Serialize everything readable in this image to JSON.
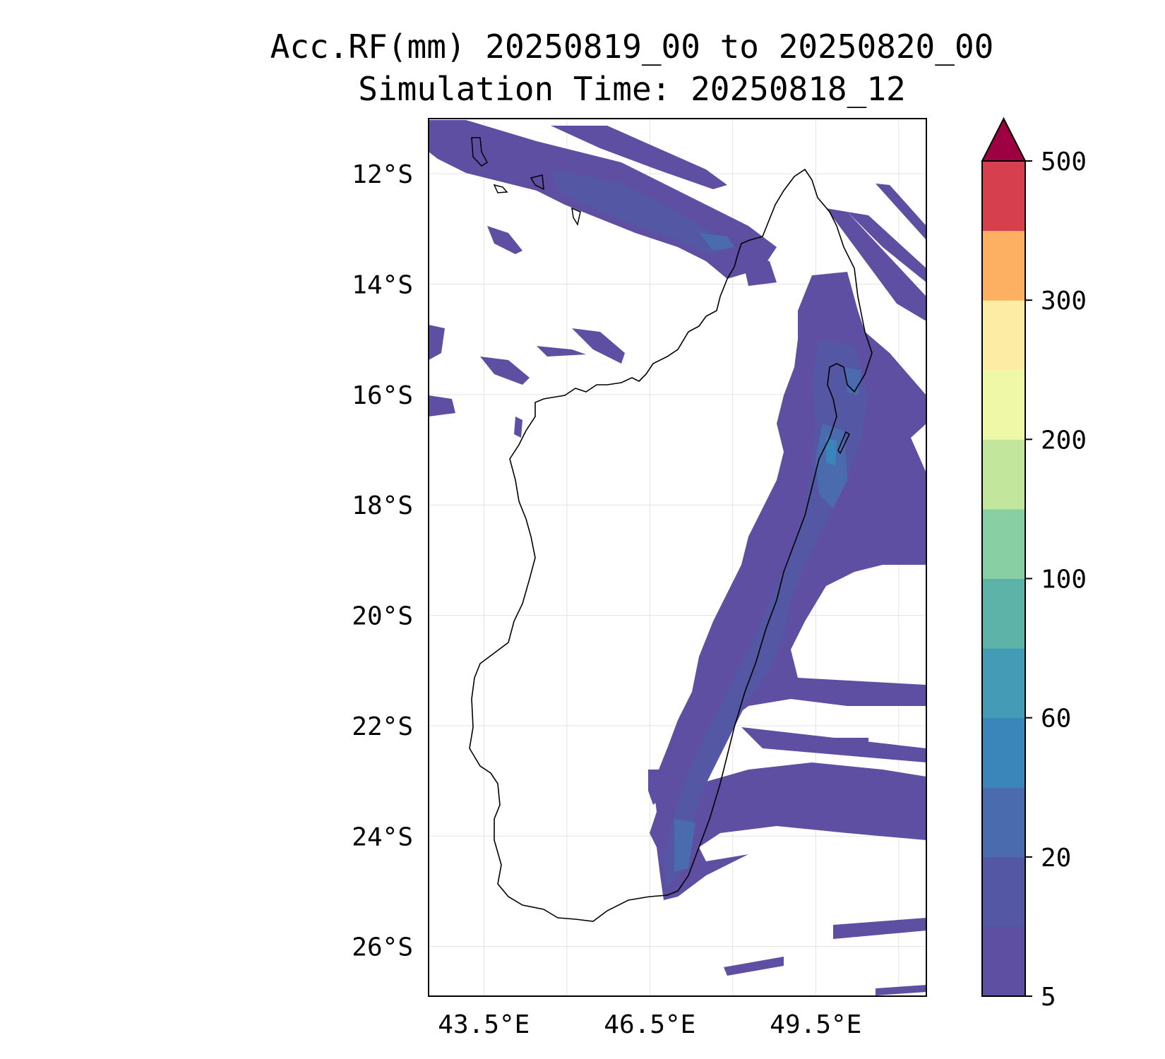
{
  "title": {
    "line1": "Acc.RF(mm) 20250819_00 to 20250820_00",
    "line2": "Simulation Time: 20250818_12"
  },
  "map": {
    "lon_range": [
      42.5,
      51.5
    ],
    "lat_range": [
      -26.9,
      -11.0
    ],
    "lon_ticks": [
      {
        "value": 43.5,
        "label": "43.5°E"
      },
      {
        "value": 46.5,
        "label": "46.5°E"
      },
      {
        "value": 49.5,
        "label": "49.5°E"
      }
    ],
    "lat_ticks": [
      {
        "value": -12,
        "label": "12°S"
      },
      {
        "value": -14,
        "label": "14°S"
      },
      {
        "value": -16,
        "label": "16°S"
      },
      {
        "value": -18,
        "label": "18°S"
      },
      {
        "value": -20,
        "label": "20°S"
      },
      {
        "value": -22,
        "label": "22°S"
      },
      {
        "value": -24,
        "label": "24°S"
      },
      {
        "value": -26,
        "label": "26°S"
      }
    ],
    "grid_lons": [
      43.5,
      45.0,
      46.5,
      48.0,
      49.5,
      51.0
    ],
    "grid_lats": [
      -12,
      -14,
      -16,
      -18,
      -20,
      -22,
      -24,
      -26
    ],
    "grid": true
  },
  "colorbar": {
    "levels": [
      5,
      10,
      20,
      40,
      60,
      80,
      100,
      150,
      200,
      250,
      300,
      400,
      500
    ],
    "colors": [
      "#5e4fa2",
      "#5457a3",
      "#4a6caf",
      "#3a86bb",
      "#439bb5",
      "#5eb3a9",
      "#88cfa4",
      "#c3e69d",
      "#eff8a6",
      "#fdeca4",
      "#fdaf62",
      "#d6404e"
    ],
    "extend_color": "#9e0142",
    "tick_labels": [
      {
        "value": 5,
        "label": "5"
      },
      {
        "value": 20,
        "label": "20"
      },
      {
        "value": 60,
        "label": "60"
      },
      {
        "value": 100,
        "label": "100"
      },
      {
        "value": 200,
        "label": "200"
      },
      {
        "value": 300,
        "label": "300"
      },
      {
        "value": 500,
        "label": "500"
      }
    ]
  }
}
